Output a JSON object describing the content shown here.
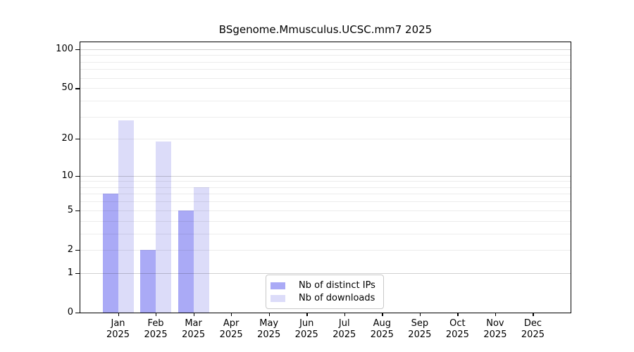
{
  "title": "BSgenome.Mmusculus.UCSC.mm7 2025",
  "chart_data": {
    "type": "bar",
    "title": "BSgenome.Mmusculus.UCSC.mm7 2025",
    "y_scale": "log1p",
    "grid": "horizontal",
    "categories": [
      "Jan",
      "Feb",
      "Mar",
      "Apr",
      "May",
      "Jun",
      "Jul",
      "Aug",
      "Sep",
      "Oct",
      "Nov",
      "Dec"
    ],
    "year_label": "2025",
    "series": [
      {
        "name": "Nb of distinct IPs",
        "color": "#aaaaf6",
        "values": [
          7,
          2,
          5,
          0,
          0,
          0,
          0,
          0,
          0,
          0,
          0,
          0
        ]
      },
      {
        "name": "Nb of downloads",
        "color": "#dcdcf9",
        "values": [
          28,
          19,
          8,
          0,
          0,
          0,
          0,
          0,
          0,
          0,
          0,
          0
        ]
      }
    ],
    "yticks": [
      0,
      1,
      2,
      5,
      10,
      20,
      50,
      100
    ],
    "ytick_labels": [
      "0",
      "1",
      "2",
      "5",
      "10",
      "20",
      "50",
      "100"
    ],
    "gridlines_minor": [
      2,
      3,
      4,
      5,
      6,
      7,
      8,
      9,
      20,
      30,
      40,
      50,
      60,
      70,
      80,
      90
    ],
    "gridlines_major": [
      1,
      10,
      100
    ],
    "ylim": [
      0,
      113
    ],
    "legend_position": "lower center"
  }
}
